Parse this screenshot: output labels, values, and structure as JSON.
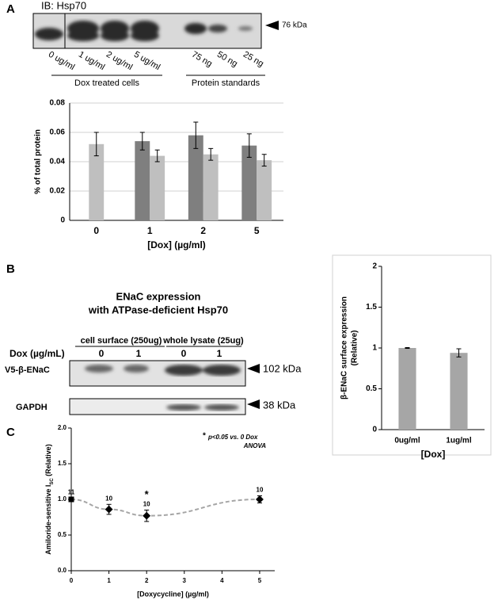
{
  "figure": {
    "panel_labels": [
      "A",
      "B",
      "C"
    ]
  },
  "blot_a": {
    "title": "IB: Hsp70",
    "marker": "76 kDa",
    "lanes": [
      "0 ug/ml",
      "1 ug/ml",
      "2 ug/ml",
      "5 ug/ml",
      "75 ng",
      "50 ng",
      "25 ng"
    ],
    "groups": [
      "Dox treated cells",
      "Protein standards"
    ]
  },
  "blot_b": {
    "title": [
      "ENaC expression",
      "with ATPase-deficient Hsp70"
    ],
    "fractions": [
      "cell surface (250ug)",
      "whole lysate (25ug)"
    ],
    "dose_label": "Dox (µg/mL)",
    "doses": [
      "0",
      "1",
      "0",
      "1"
    ],
    "rows": [
      {
        "label": "V5-β-ENaC",
        "marker": "102 kDa"
      },
      {
        "label": "GAPDH",
        "marker": "38 kDa"
      }
    ]
  },
  "chart_data": [
    {
      "type": "bar",
      "y_label": "% of total protein",
      "x_label": "[Dox] (µg/ml)",
      "categories": [
        "0",
        "1",
        "2",
        "5"
      ],
      "series": [
        {
          "color": "#7f7f7f",
          "values": [
            null,
            0.054,
            0.058,
            0.051
          ],
          "errors": [
            null,
            0.006,
            0.009,
            0.008
          ]
        },
        {
          "color": "#bfbfbf",
          "values": [
            0.052,
            0.044,
            0.045,
            0.041
          ],
          "errors": [
            0.008,
            0.004,
            0.004,
            0.004
          ]
        }
      ],
      "ylim": [
        0,
        0.08
      ],
      "yticks": [
        0,
        0.02,
        0.04,
        0.06,
        0.08
      ],
      "grid": true
    },
    {
      "type": "bar",
      "y_label": [
        "β-ENaC surface expression",
        "(Relative)"
      ],
      "x_label": "[Dox]",
      "categories": [
        "0ug/ml",
        "1ug/ml"
      ],
      "series": [
        {
          "color": "#a6a6a6",
          "values": [
            1,
            0.94
          ],
          "errors": [
            0.005,
            0.05
          ]
        }
      ],
      "ylim": [
        0,
        2
      ],
      "yticks": [
        0,
        0.5,
        1,
        1.5,
        2
      ],
      "grid": false
    },
    {
      "type": "line",
      "y_label": [
        "Amiloride-sensitive I",
        "SC",
        " (Relative)"
      ],
      "x_label": "[Doxycycline] (µg/ml)",
      "x": [
        0,
        1,
        2,
        5
      ],
      "values": [
        1,
        0.86,
        0.77,
        1
      ],
      "errors": [
        0.02,
        0.07,
        0.08,
        0.05
      ],
      "n_labels": [
        "11",
        "10",
        "10",
        "10"
      ],
      "marks": [
        null,
        null,
        "*",
        null
      ],
      "note": [
        "*",
        "p<0.05 vs. 0 Dox",
        "ANOVA"
      ],
      "color": "#000000",
      "line_color": "#a6a6a6",
      "xlim": [
        0,
        5.4
      ],
      "xticks": [
        0,
        1,
        2,
        3,
        4,
        5
      ],
      "ylim": [
        0,
        2
      ],
      "yticks": [
        {
          "value": 0,
          "label": "0.0"
        },
        {
          "value": 0.5,
          "label": "0.5"
        },
        {
          "value": 1,
          "label": "1.0"
        },
        {
          "value": 1.5,
          "label": "1.5"
        },
        {
          "value": 2,
          "label": "2.0"
        }
      ]
    }
  ]
}
